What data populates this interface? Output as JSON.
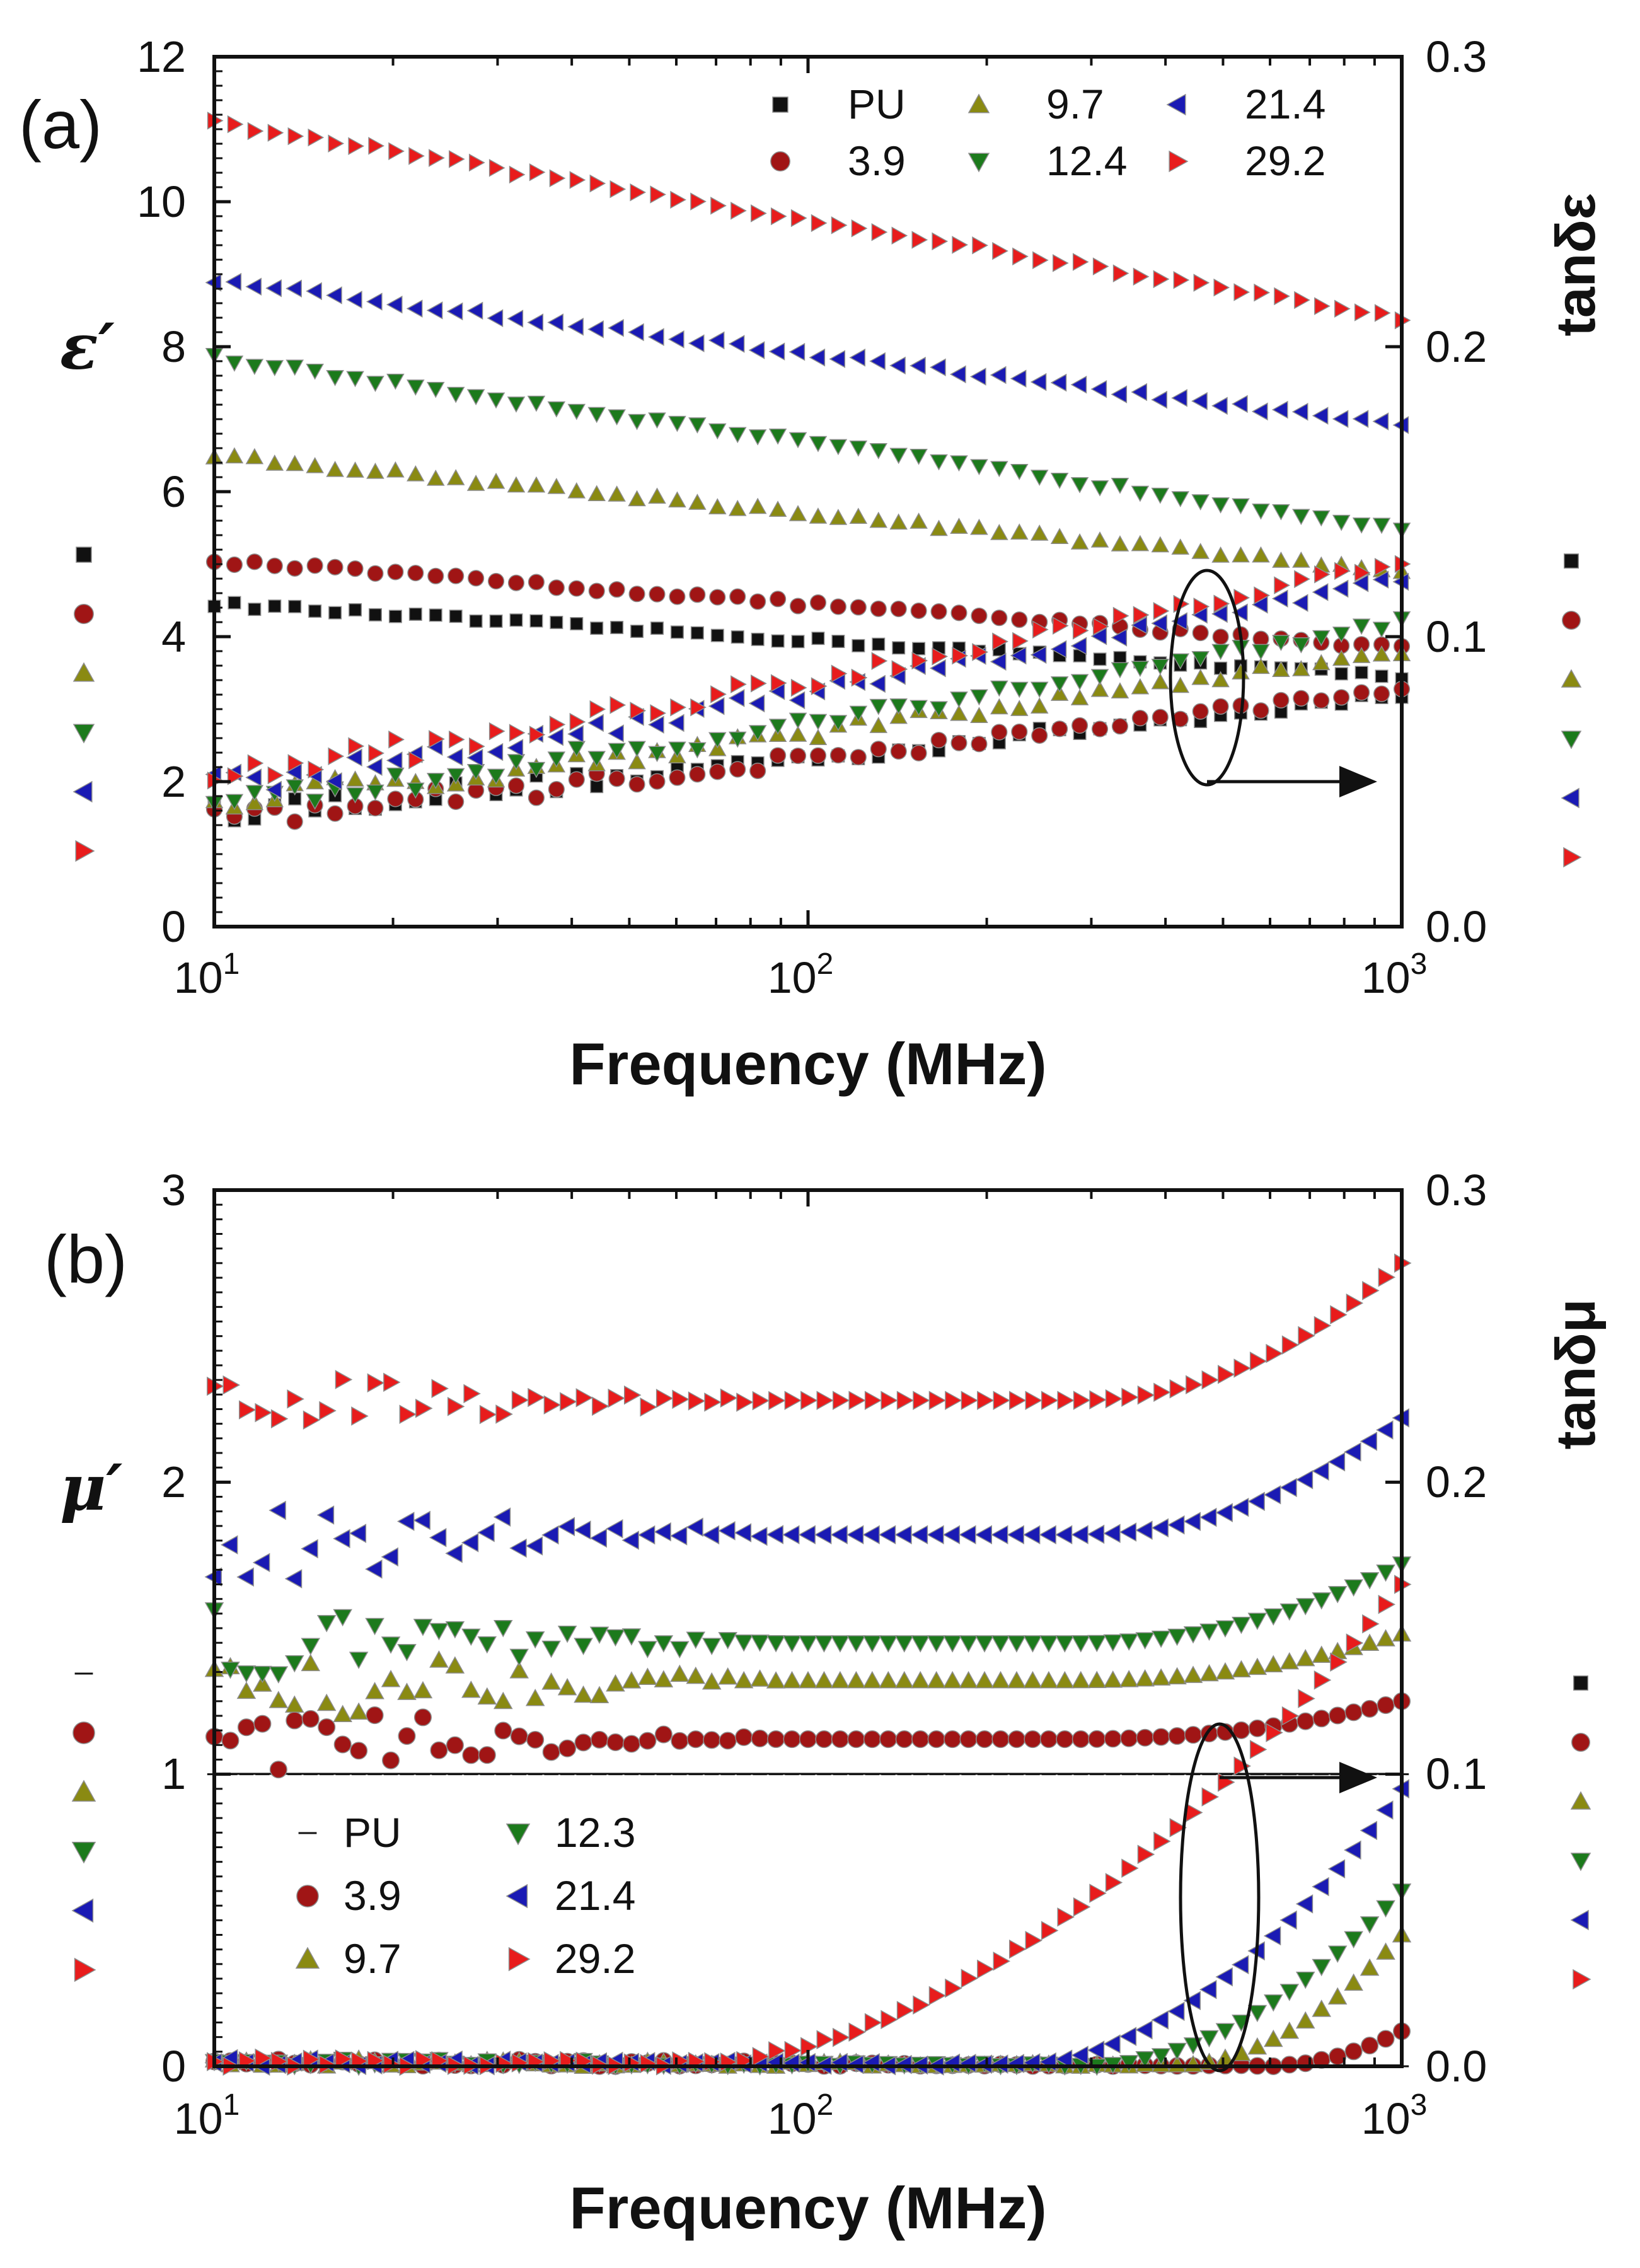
{
  "colors": {
    "PU": "#111111",
    "3.9": "#a01515",
    "9.7": "#8a8a12",
    "12.4": "#1c7a1c",
    "12.3": "#1c7a1c",
    "21.4": "#1a1ab4",
    "29.2": "#e81c1c"
  },
  "chart_data": [
    {
      "type": "scatter",
      "panel_label": "(a)",
      "xlabel": "Frequency (MHz)",
      "ylabel": "ε′",
      "y2label": "tanδε",
      "xscale": "log",
      "xlim": [
        10,
        1000
      ],
      "ylim": [
        0,
        12
      ],
      "y2lim": [
        0.0,
        0.3
      ],
      "x_ticks": [
        {
          "base": "10",
          "exp": "1"
        },
        {
          "base": "10",
          "exp": "2"
        },
        {
          "base": "10",
          "exp": "3"
        }
      ],
      "y_ticks": [
        "0",
        "2",
        "4",
        "6",
        "8",
        "10",
        "12"
      ],
      "y2_ticks": [
        "0.0",
        "0.1",
        "0.2",
        "0.3"
      ],
      "legend": {
        "position": "top-right",
        "entries": [
          "PU",
          "3.9",
          "9.7",
          "12.4",
          "21.4",
          "29.2"
        ]
      },
      "series": [
        {
          "name": "PU",
          "marker": "square",
          "real": {
            "start": 4.45,
            "end": 3.45
          },
          "loss": {
            "start": 0.04,
            "end": 0.08,
            "noise": 0.006
          }
        },
        {
          "name": "3.9",
          "marker": "circle",
          "real": {
            "start": 5.05,
            "end": 3.85
          },
          "loss": {
            "start": 0.038,
            "end": 0.082,
            "noise": 0.006
          }
        },
        {
          "name": "9.7",
          "marker": "triangle-up",
          "real": {
            "start": 6.5,
            "end": 4.9
          },
          "loss": {
            "start": 0.044,
            "end": 0.095,
            "noise": 0.006
          }
        },
        {
          "name": "12.4",
          "marker": "triangle-down",
          "real": {
            "start": 7.85,
            "end": 5.5
          },
          "loss": {
            "start": 0.042,
            "end": 0.105,
            "noise": 0.007
          }
        },
        {
          "name": "21.4",
          "marker": "triangle-left",
          "real": {
            "start": 8.9,
            "end": 6.9
          },
          "loss": {
            "start": 0.048,
            "end": 0.12,
            "noise": 0.007
          }
        },
        {
          "name": "29.2",
          "marker": "triangle-right",
          "real": {
            "start": 11.1,
            "end": 8.4
          },
          "loss": {
            "start": 0.052,
            "end": 0.126,
            "noise": 0.007
          }
        }
      ],
      "annotation": {
        "type": "ellipse-arrow",
        "points_to": "right axis",
        "at_x": 500,
        "arrow_y": 2
      }
    },
    {
      "type": "scatter",
      "panel_label": "(b)",
      "xlabel": "Frequency (MHz)",
      "ylabel": "μ′",
      "y2label": "tanδμ",
      "xscale": "log",
      "xlim": [
        10,
        1000
      ],
      "ylim": [
        0,
        3
      ],
      "y2lim": [
        0.0,
        0.3
      ],
      "x_ticks": [
        {
          "base": "10",
          "exp": "1"
        },
        {
          "base": "10",
          "exp": "2"
        },
        {
          "base": "10",
          "exp": "3"
        }
      ],
      "y_ticks": [
        "0",
        "1",
        "2",
        "3"
      ],
      "y2_ticks": [
        "0.0",
        "0.1",
        "0.2",
        "0.3"
      ],
      "reference_line_y": 1,
      "legend": {
        "position": "bottom-left",
        "entries": [
          "PU",
          "3.9",
          "9.7",
          "12.3",
          "21.4",
          "29.2"
        ]
      },
      "series": [
        {
          "name": "PU",
          "marker": "dash",
          "real": {
            "plateau": 1.0
          },
          "loss": {
            "onset": 1000,
            "max": 0.0
          }
        },
        {
          "name": "3.9",
          "marker": "circle",
          "real": {
            "plateau": 1.12,
            "end": 1.25,
            "scatter": 0.12
          },
          "loss": {
            "onset": 600,
            "max": 0.012
          }
        },
        {
          "name": "9.7",
          "marker": "triangle-up",
          "real": {
            "plateau": 1.32,
            "end": 1.48,
            "scatter": 0.16
          },
          "loss": {
            "onset": 420,
            "max": 0.045
          }
        },
        {
          "name": "12.3",
          "marker": "triangle-down",
          "real": {
            "plateau": 1.45,
            "end": 1.72,
            "scatter": 0.12
          },
          "loss": {
            "onset": 300,
            "max": 0.06
          }
        },
        {
          "name": "21.4",
          "marker": "triangle-left",
          "real": {
            "plateau": 1.82,
            "end": 2.22,
            "scatter": 0.18
          },
          "loss": {
            "onset": 220,
            "max": 0.095
          }
        },
        {
          "name": "29.2",
          "marker": "triangle-right",
          "real": {
            "plateau": 2.28,
            "end": 2.75,
            "scatter": 0.1
          },
          "loss": {
            "onset": 60,
            "max": 0.165
          }
        }
      ],
      "annotation": {
        "type": "ellipse-arrow",
        "points_to": "right axis",
        "at_x": 500,
        "arrow_y": 1
      }
    }
  ]
}
